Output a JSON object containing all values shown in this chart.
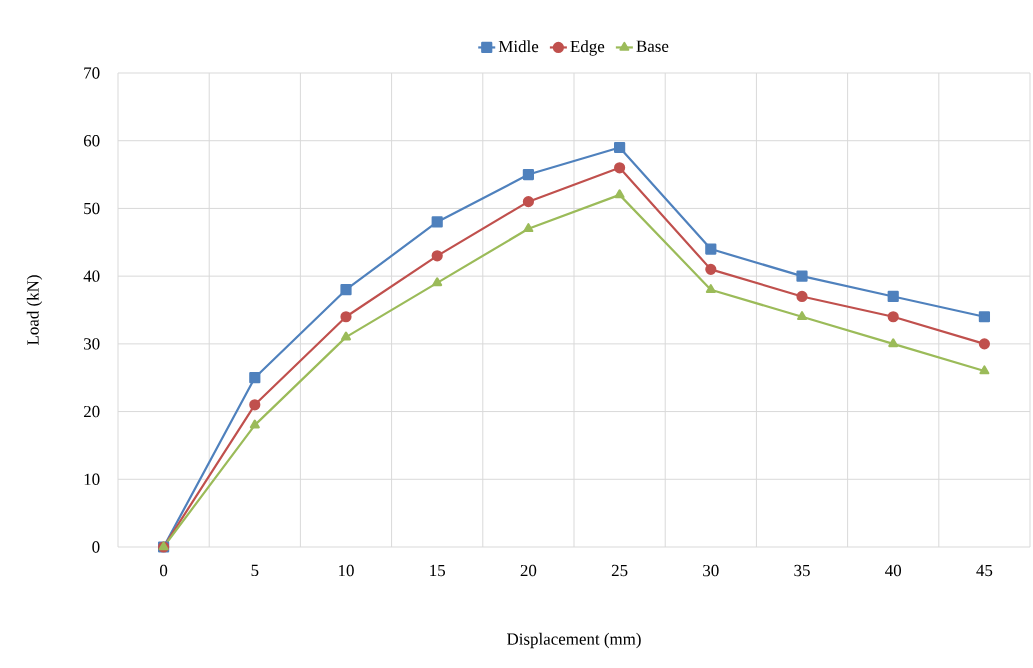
{
  "chart_data": {
    "type": "line",
    "xlabel": "Displacement (mm)",
    "ylabel": "Load (kN)",
    "categories": [
      "0",
      "5",
      "10",
      "15",
      "20",
      "25",
      "30",
      "35",
      "40",
      "45"
    ],
    "series": [
      {
        "name": "Midle",
        "color": "#4f81bd",
        "marker": "square",
        "values": [
          0,
          25,
          38,
          48,
          55,
          59,
          44,
          40,
          37,
          34
        ]
      },
      {
        "name": "Edge",
        "color": "#c0504d",
        "marker": "circle",
        "values": [
          0,
          21,
          34,
          43,
          51,
          56,
          41,
          37,
          34,
          30
        ]
      },
      {
        "name": "Base",
        "color": "#9bbb59",
        "marker": "triangle",
        "values": [
          0,
          18,
          31,
          39,
          47,
          52,
          38,
          34,
          30,
          26
        ]
      }
    ],
    "ylim": [
      0,
      70
    ],
    "yticks": [
      0,
      10,
      20,
      30,
      40,
      50,
      60,
      70
    ],
    "grid": true,
    "legend": "top",
    "line_style": "solid"
  }
}
